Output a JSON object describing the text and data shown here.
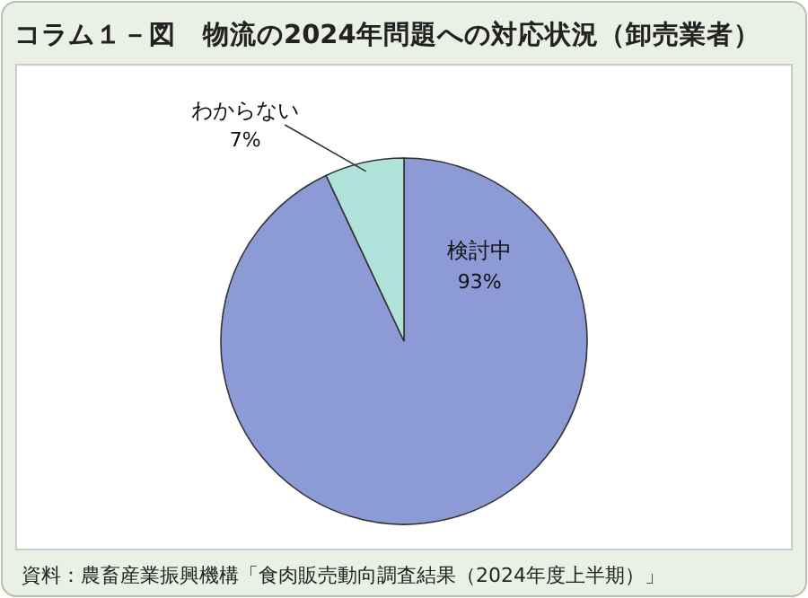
{
  "chart_data": {
    "type": "pie",
    "title": "コラム１－図　物流の2024年問題への対応状況（卸売業者）",
    "categories": [
      "検討中",
      "わからない"
    ],
    "values": [
      93,
      7
    ],
    "value_labels": [
      "93%",
      "7%"
    ],
    "colors": [
      "#8c9ad6",
      "#b0e2da"
    ],
    "annotations": [
      "資料：農畜産業振興機構「食肉販売動向調査結果（2024年度上半期）」"
    ]
  }
}
